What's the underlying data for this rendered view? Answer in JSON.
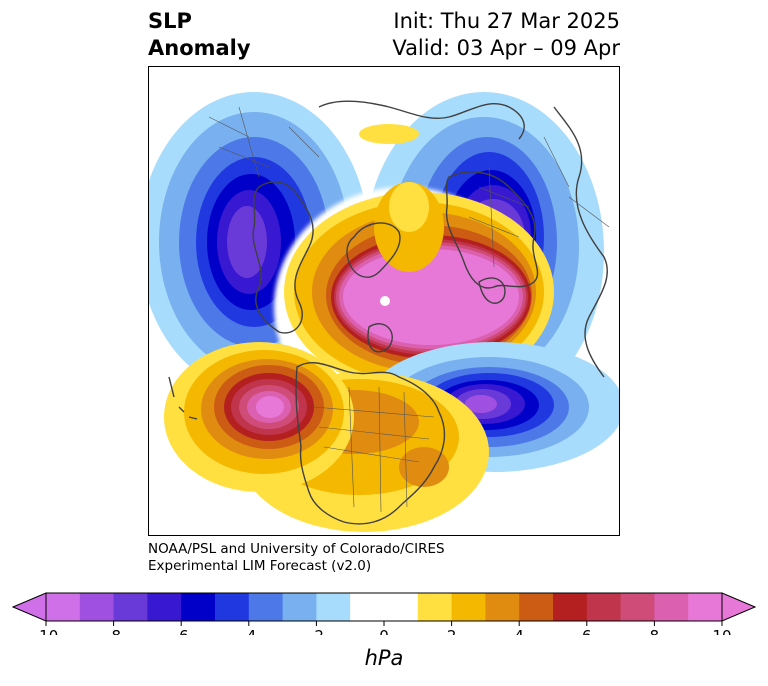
{
  "title": {
    "left": [
      "SLP",
      "Anomaly"
    ],
    "right": [
      "Init: Thu 27 Mar 2025",
      "Valid: 03 Apr – 09 Apr"
    ]
  },
  "credit": [
    "NOAA/PSL and University of Colorado/CIRES",
    "Experimental LIM Forecast (v2.0)"
  ],
  "colorbar": {
    "unit": "hPa",
    "ticks": [
      "-10",
      "-8",
      "-6",
      "-4",
      "-2",
      "0",
      "2",
      "4",
      "6",
      "8",
      "10"
    ],
    "colors": [
      "#d070e8",
      "#a050e0",
      "#6a3ad8",
      "#3818d0",
      "#0000c8",
      "#2038e0",
      "#4c78e8",
      "#78b0f0",
      "#a8dcfc",
      "#ffffff",
      "#ffffff",
      "#ffe040",
      "#f4b800",
      "#e08c10",
      "#cc5c14",
      "#b42020",
      "#c0344c",
      "#d04c78",
      "#dc60b0",
      "#e878d8"
    ],
    "min_arrow_color": "#d070e8",
    "max_arrow_color": "#e878d8"
  },
  "map": {
    "projection": "polar stereographic (North Pole)",
    "field": "sea level pressure anomaly",
    "lows": [
      "North Pacific / Gulf of Alaska",
      "Barents-Kara / northwest Europe",
      "central North Atlantic"
    ],
    "highs": [
      "Arctic Ocean / Greenland",
      "central North Pacific",
      "United States"
    ]
  }
}
